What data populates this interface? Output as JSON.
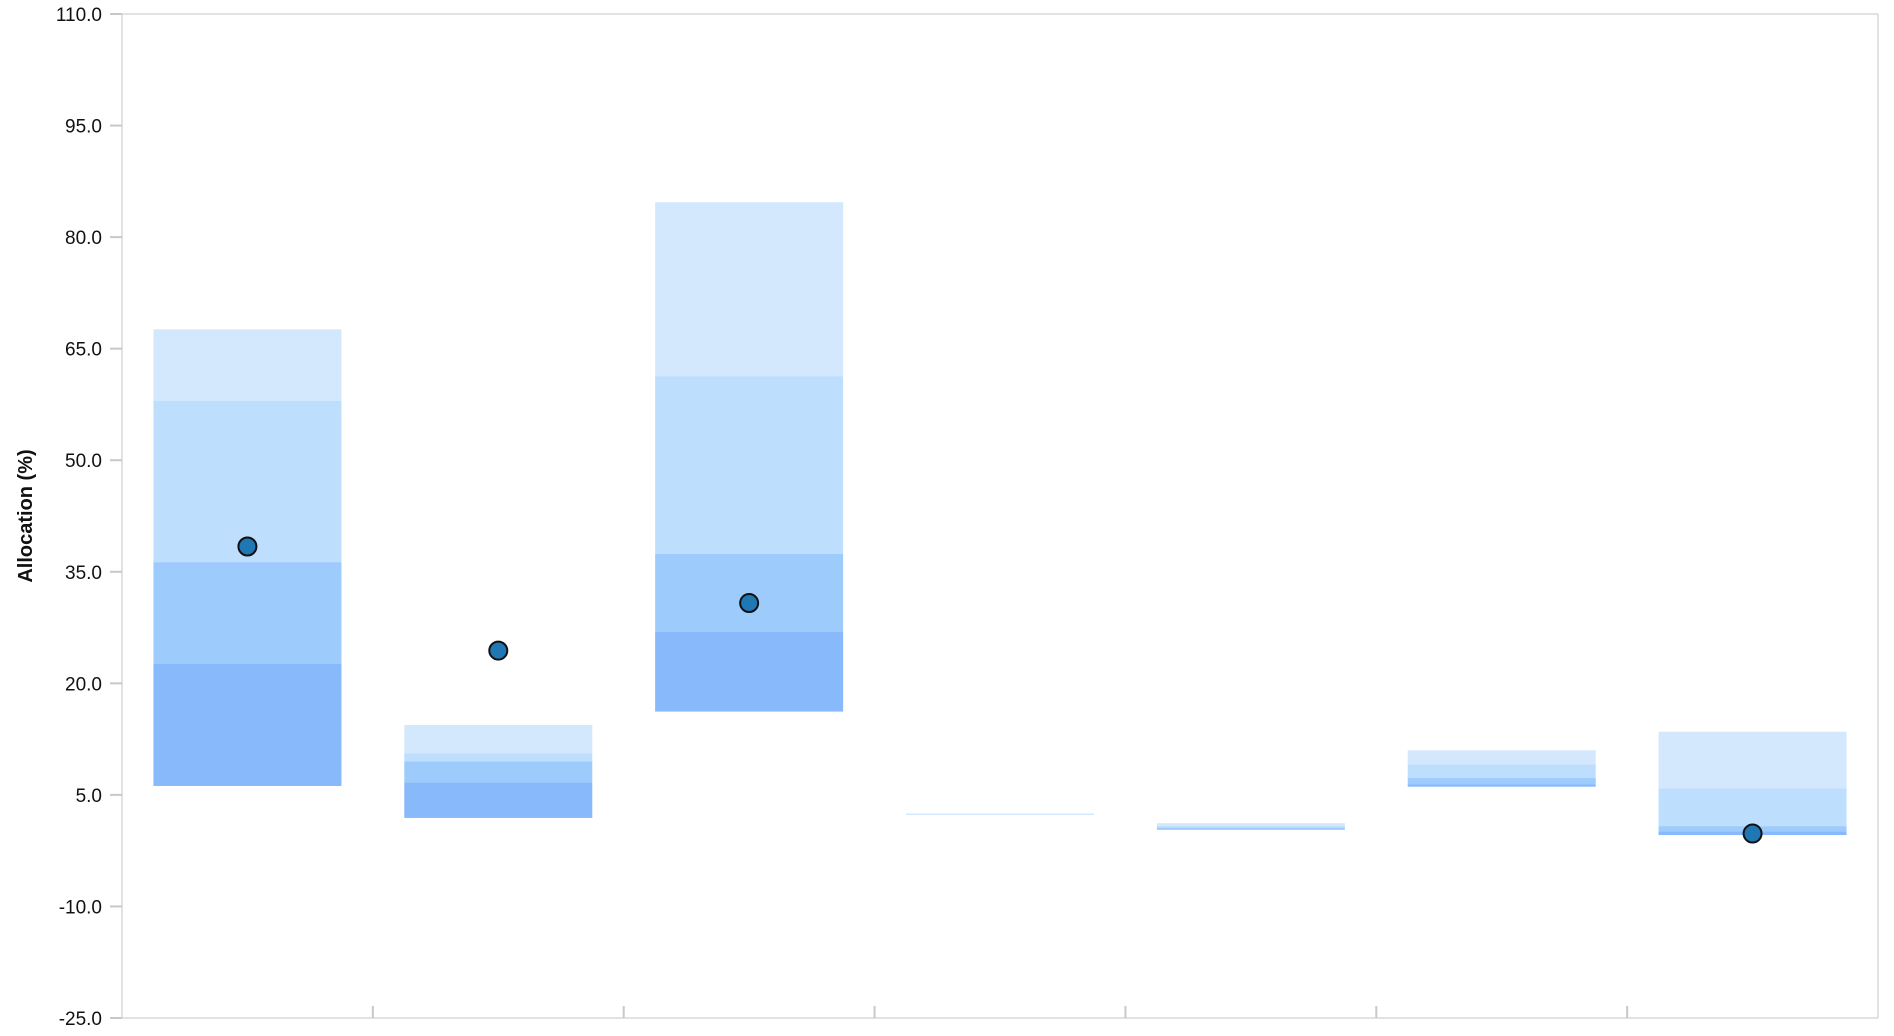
{
  "chart_data": {
    "type": "bar",
    "title": "",
    "xlabel": "",
    "ylabel": "Allocation (%)",
    "ylim": [
      -25,
      110
    ],
    "yticks": [
      "110.0",
      "95.0",
      "80.0",
      "65.0",
      "50.0",
      "35.0",
      "20.0",
      "5.0",
      "-10.0",
      "-25.0"
    ],
    "ytick_values": [
      110,
      95,
      80,
      65,
      50,
      35,
      20,
      5,
      -10,
      -25
    ],
    "categories": [
      "",
      "",
      "",
      "",
      "",
      "",
      ""
    ],
    "band_colors": [
      "#d4e8fd",
      "#bedefd",
      "#9dccfc",
      "#88b9fb"
    ],
    "point_color": "#1f77b4",
    "grid": false,
    "legend": "none",
    "series": [
      {
        "bands": [
          [
            58,
            67.6
          ],
          [
            36.3,
            58
          ],
          [
            22.6,
            36.3
          ],
          [
            6.2,
            22.6
          ]
        ],
        "point": 38.4
      },
      {
        "bands": [
          [
            10.6,
            14.4
          ],
          [
            9.5,
            10.6
          ],
          [
            6.7,
            9.5
          ],
          [
            1.9,
            6.7
          ]
        ],
        "point": 24.4
      },
      {
        "bands": [
          [
            61.3,
            84.7
          ],
          [
            37.4,
            61.3
          ],
          [
            26.9,
            37.4
          ],
          [
            16.2,
            26.9
          ]
        ],
        "point": 30.8
      },
      {
        "bands": [
          [
            2.3,
            2.5
          ]
        ],
        "point": null
      },
      {
        "bands": [
          [
            0.8,
            1.2
          ],
          [
            0.6,
            0.8
          ],
          [
            0.3,
            0.6
          ]
        ],
        "point": null
      },
      {
        "bands": [
          [
            9.1,
            11.0
          ],
          [
            7.3,
            9.1
          ],
          [
            6.4,
            7.3
          ],
          [
            6.1,
            6.4
          ]
        ],
        "point": null
      },
      {
        "bands": [
          [
            5.9,
            13.5
          ],
          [
            0.8,
            5.9
          ],
          [
            0.1,
            0.8
          ],
          [
            -0.4,
            0.1
          ]
        ],
        "point": -0.2
      }
    ]
  }
}
